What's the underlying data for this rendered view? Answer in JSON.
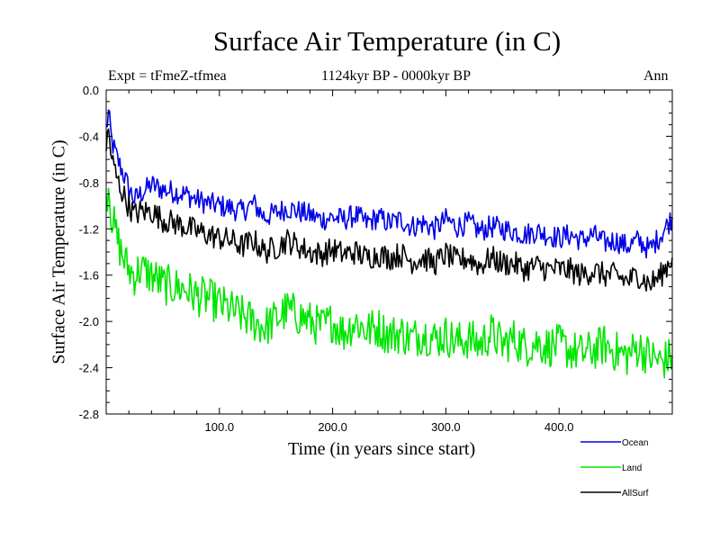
{
  "chart_data": {
    "type": "line",
    "title": "Surface Air Temperature (in C)",
    "subtitle": "1124kyr BP - 0000kyr BP",
    "experiment": "Expt = tFmeZ-tfmea",
    "period": "Ann",
    "xlabel": "Time (in years since start)",
    "ylabel": "Surface Air Temperature (in C)",
    "xlim": [
      0,
      500
    ],
    "ylim": [
      -2.8,
      0.0
    ],
    "xticks": [
      100,
      200,
      300,
      400
    ],
    "xtick_labels": [
      "100.0",
      "200.0",
      "300.0",
      "400.0"
    ],
    "yticks": [
      0.0,
      -0.4,
      -0.8,
      -1.2,
      -1.6,
      -2.0,
      -2.4,
      -2.8
    ],
    "ytick_labels": [
      "0.0",
      "-0.4",
      "-0.8",
      "-1.2",
      "-1.6",
      "-2.0",
      "-2.4",
      "-2.8"
    ],
    "series": [
      {
        "name": "Ocean",
        "color": "#0000e6",
        "x": [
          0,
          2,
          5,
          10,
          15,
          20,
          25,
          30,
          40,
          50,
          60,
          70,
          80,
          90,
          100,
          110,
          120,
          130,
          140,
          150,
          160,
          170,
          180,
          190,
          200,
          210,
          220,
          230,
          240,
          250,
          260,
          270,
          280,
          290,
          300,
          310,
          320,
          330,
          340,
          350,
          360,
          370,
          380,
          390,
          400,
          410,
          420,
          430,
          440,
          450,
          460,
          470,
          480,
          490,
          500
        ],
        "values": [
          -0.35,
          -0.2,
          -0.45,
          -0.6,
          -0.72,
          -0.85,
          -0.95,
          -0.9,
          -0.82,
          -0.86,
          -0.88,
          -0.9,
          -0.95,
          -0.98,
          -1.0,
          -1.02,
          -1.05,
          -0.98,
          -1.1,
          -1.06,
          -1.02,
          -1.05,
          -1.08,
          -1.12,
          -1.1,
          -1.12,
          -1.08,
          -1.15,
          -1.1,
          -1.15,
          -1.12,
          -1.18,
          -1.15,
          -1.2,
          -1.12,
          -1.18,
          -1.15,
          -1.22,
          -1.18,
          -1.2,
          -1.22,
          -1.25,
          -1.22,
          -1.25,
          -1.28,
          -1.25,
          -1.3,
          -1.25,
          -1.32,
          -1.3,
          -1.35,
          -1.3,
          -1.38,
          -1.25,
          -1.1
        ]
      },
      {
        "name": "Land",
        "color": "#00e600",
        "x": [
          0,
          2,
          5,
          10,
          15,
          20,
          25,
          30,
          40,
          50,
          60,
          70,
          80,
          90,
          100,
          110,
          120,
          130,
          140,
          150,
          160,
          170,
          180,
          190,
          200,
          210,
          220,
          230,
          240,
          250,
          260,
          270,
          280,
          290,
          300,
          310,
          320,
          330,
          340,
          350,
          360,
          370,
          380,
          390,
          400,
          410,
          420,
          430,
          440,
          450,
          460,
          470,
          480,
          490,
          500
        ],
        "values": [
          -0.95,
          -0.8,
          -1.1,
          -1.3,
          -1.45,
          -1.55,
          -1.6,
          -1.55,
          -1.6,
          -1.68,
          -1.7,
          -1.72,
          -1.78,
          -1.8,
          -1.85,
          -1.9,
          -1.95,
          -2.0,
          -2.05,
          -1.98,
          -1.9,
          -1.95,
          -2.0,
          -2.05,
          -2.0,
          -2.1,
          -2.0,
          -2.08,
          -2.05,
          -2.12,
          -2.1,
          -2.15,
          -2.1,
          -2.15,
          -2.12,
          -2.18,
          -2.15,
          -2.2,
          -2.1,
          -2.2,
          -2.15,
          -2.22,
          -2.18,
          -2.22,
          -2.2,
          -2.25,
          -2.28,
          -2.25,
          -2.2,
          -2.26,
          -2.3,
          -2.22,
          -2.3,
          -2.35,
          -2.3
        ]
      },
      {
        "name": "AllSurf",
        "color": "#000000",
        "x": [
          0,
          2,
          5,
          10,
          15,
          20,
          25,
          30,
          40,
          50,
          60,
          70,
          80,
          90,
          100,
          110,
          120,
          130,
          140,
          150,
          160,
          170,
          180,
          190,
          200,
          210,
          220,
          230,
          240,
          250,
          260,
          270,
          280,
          290,
          300,
          310,
          320,
          330,
          340,
          350,
          360,
          370,
          380,
          390,
          400,
          410,
          420,
          430,
          440,
          450,
          460,
          470,
          480,
          490,
          500
        ],
        "values": [
          -0.5,
          -0.35,
          -0.6,
          -0.78,
          -0.9,
          -1.0,
          -1.08,
          -1.05,
          -1.05,
          -1.12,
          -1.15,
          -1.18,
          -1.22,
          -1.25,
          -1.28,
          -1.3,
          -1.35,
          -1.3,
          -1.4,
          -1.36,
          -1.3,
          -1.35,
          -1.4,
          -1.42,
          -1.38,
          -1.42,
          -1.4,
          -1.45,
          -1.42,
          -1.45,
          -1.42,
          -1.48,
          -1.45,
          -1.5,
          -1.42,
          -1.48,
          -1.45,
          -1.52,
          -1.45,
          -1.5,
          -1.5,
          -1.55,
          -1.52,
          -1.55,
          -1.55,
          -1.56,
          -1.6,
          -1.56,
          -1.6,
          -1.6,
          -1.65,
          -1.6,
          -1.68,
          -1.6,
          -1.45
        ]
      }
    ]
  }
}
